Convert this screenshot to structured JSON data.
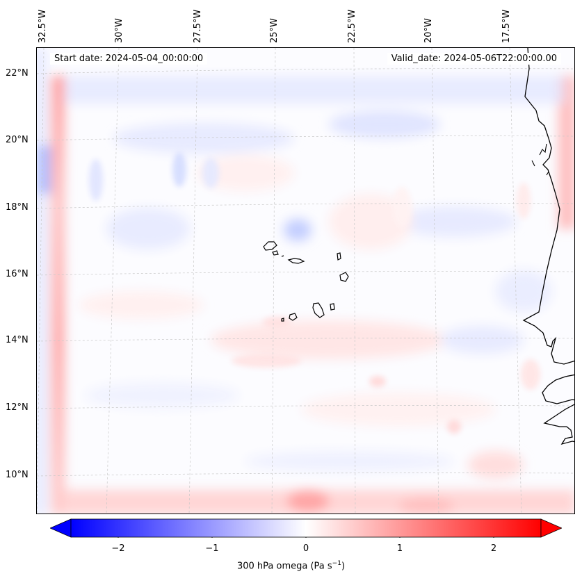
{
  "map": {
    "start_date": "Start date: 2024-05-04_00:00:00",
    "valid_date": "Valid_date: 2024-05-06T22:00:00.00",
    "lon_labels": [
      "32.5°W",
      "30°W",
      "27.5°W",
      "25°W",
      "22.5°W",
      "20°W",
      "17.5°W"
    ],
    "lat_labels": [
      "22°N",
      "20°N",
      "18°N",
      "16°N",
      "14°N",
      "12°N",
      "10°N"
    ]
  },
  "colorbar": {
    "title": "300 hPa omega (Pa s",
    "title_sup": "−1",
    "title_end": ")",
    "ticks": [
      "−2",
      "−1",
      "0",
      "1",
      "2"
    ],
    "min_color": "#0000ff",
    "mid_color": "#ffffff",
    "max_color": "#ff0000"
  }
}
